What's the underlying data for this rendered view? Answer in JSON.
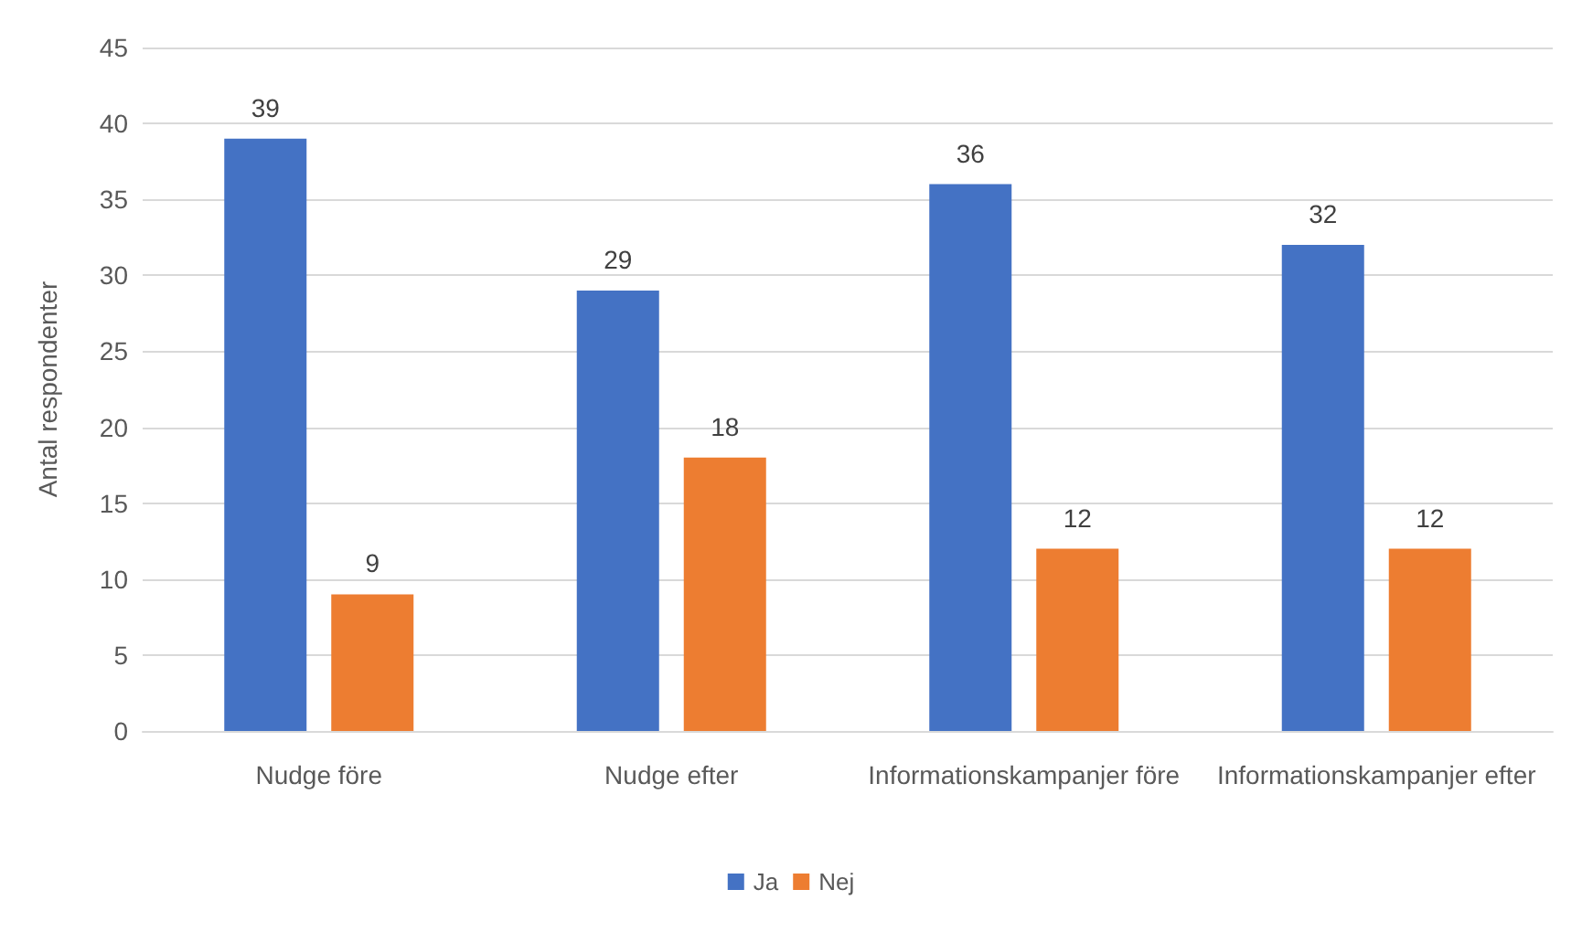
{
  "chart_data": {
    "type": "bar",
    "ylabel": "Antal respondenter",
    "categories": [
      "Nudge före",
      "Nudge efter",
      "Informationskampanjer före",
      "Informationskampanjer efter"
    ],
    "series": [
      {
        "name": "Ja",
        "color": "#4472c4",
        "values": [
          39,
          29,
          36,
          32
        ]
      },
      {
        "name": "Nej",
        "color": "#ed7d31",
        "values": [
          9,
          18,
          12,
          12
        ]
      }
    ],
    "ylim": [
      0,
      45
    ],
    "yticks": [
      0,
      5,
      10,
      15,
      20,
      25,
      30,
      35,
      40,
      45
    ],
    "grid": "y",
    "legend": "bottom",
    "data_labels": true
  }
}
